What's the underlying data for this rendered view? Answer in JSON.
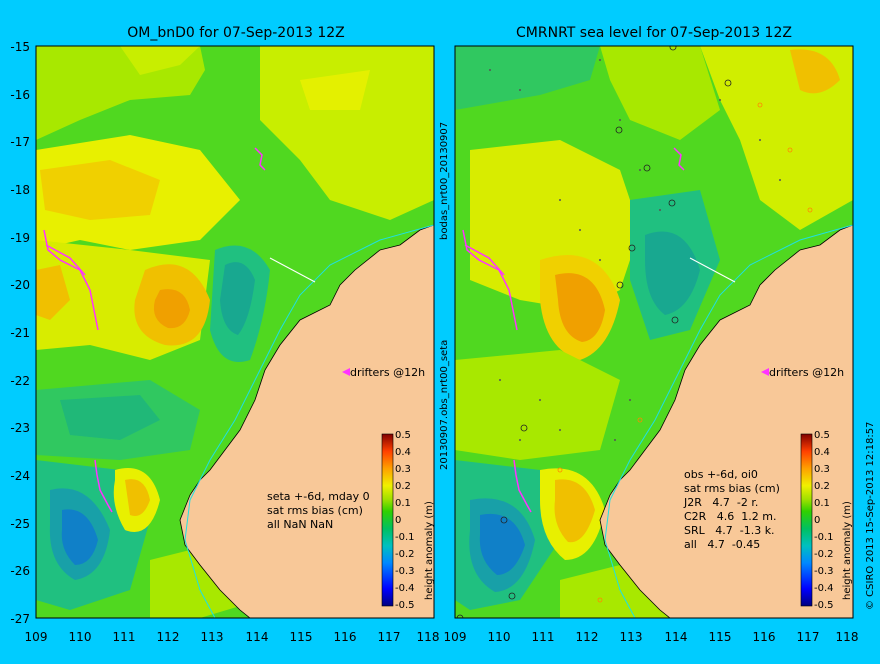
{
  "left_panel": {
    "title": "OM_bnD0 for 07-Sep-2013 12Z",
    "y_ticks": [
      "-15",
      "-16",
      "-17",
      "-18",
      "-19",
      "-20",
      "-21",
      "-22",
      "-23",
      "-24",
      "-25",
      "-26",
      "-27"
    ],
    "x_ticks": [
      "109",
      "110",
      "111",
      "112",
      "113",
      "114",
      "115",
      "116",
      "117",
      "118"
    ],
    "drifters_label": "drifters @12h",
    "stats_lines": [
      "seta +-6d, mday 0",
      "sat rms bias (cm)",
      "all NaN NaN"
    ]
  },
  "right_panel": {
    "title": "CMRNRT sea level  for 07-Sep-2013 12Z",
    "x_ticks": [
      "109",
      "110",
      "111",
      "112",
      "113",
      "114",
      "115",
      "116",
      "117",
      "118"
    ],
    "drifters_label": "drifters @12h",
    "stats_lines": [
      "obs +-6d, oi0",
      "sat rms bias (cm)",
      "J2R   4.7  -2 r.",
      "C2R   4.6  1.2 m.",
      "SRL   4.7  -1.3 k.",
      "all   4.7  -0.45"
    ]
  },
  "colorbar": {
    "label": "height anomaly (m)",
    "ticks": [
      "0.5",
      "0.4",
      "0.3",
      "0.2",
      "0.1",
      "0",
      "-0.1",
      "-0.2",
      "-0.3",
      "-0.4",
      "-0.5"
    ]
  },
  "middle_label": "20130907.obs_nrt00_seta",
  "middle_label_top": "bodas_nrt00_20130907",
  "side_credit": "© CSIRO 2013   15-Sep-2013 12:18:57",
  "colors": {
    "background": "#00ccff",
    "land": "#f8c898",
    "drifter": "#ff33ff"
  }
}
